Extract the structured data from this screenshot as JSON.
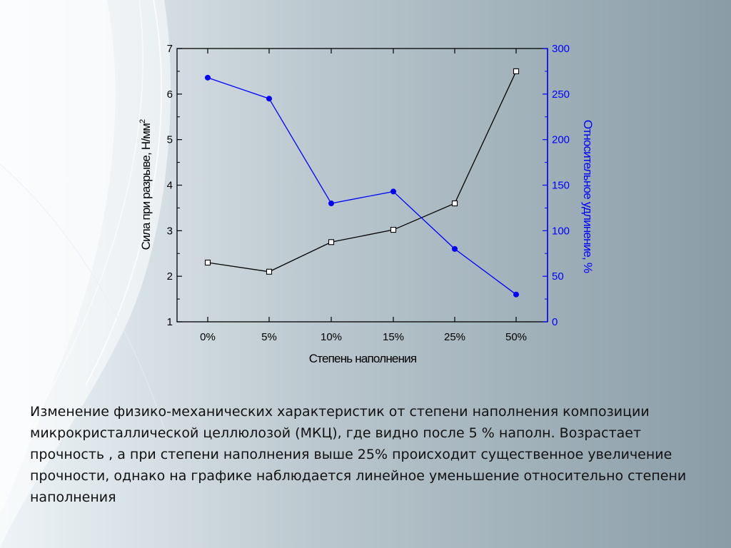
{
  "chart_data": {
    "type": "line",
    "categories": [
      "0%",
      "5%",
      "10%",
      "15%",
      "25%",
      "50%"
    ],
    "xlabel": "Степень наполнения",
    "ylabel_left": "Сила при разрыве,  Н/мм",
    "ylabel_left_superscript": "2",
    "ylabel_right": "Относительное удлинение, %",
    "ylim_left": [
      1,
      7
    ],
    "yticks_left": [
      "1",
      "2",
      "3",
      "4",
      "5",
      "6",
      "7"
    ],
    "ylim_right": [
      0,
      300
    ],
    "yticks_right": [
      "0",
      "50",
      "100",
      "150",
      "200",
      "250",
      "300"
    ],
    "grid": false,
    "series": [
      {
        "axis": "left",
        "marker": "open-square",
        "color": "#000000",
        "values": [
          2.3,
          2.1,
          2.75,
          3.02,
          3.6,
          6.5
        ]
      },
      {
        "axis": "right",
        "marker": "filled-circle",
        "color": "#0000ff",
        "values": [
          268,
          245,
          130,
          143,
          80,
          30
        ]
      }
    ]
  },
  "caption": "Изменение физико-механических характеристик от степени наполнения композиции микрокристаллической целлюлозой (МКЦ), где видно после 5 % наполн. Возрастает прочность , а при степени наполнения выше 25% происходит существенное увеличение прочности, однако на графике наблюдается линейное уменьшение относительно степени наполнения"
}
